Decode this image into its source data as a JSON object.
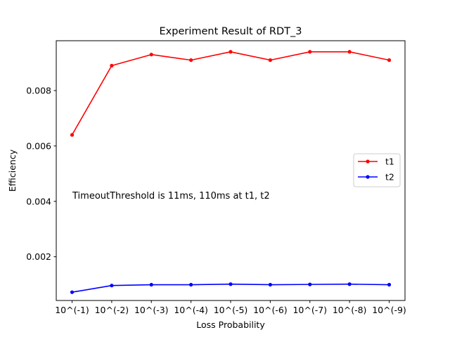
{
  "chart_data": {
    "type": "line",
    "title": "Experiment Result of RDT_3",
    "xlabel": "Loss Probability",
    "ylabel": "Efficiency",
    "categories": [
      "10^(-1)",
      "10^(-2)",
      "10^(-3)",
      "10^(-4)",
      "10^(-5)",
      "10^(-6)",
      "10^(-7)",
      "10^(-8)",
      "10^(-9)"
    ],
    "series": [
      {
        "name": "t1",
        "color": "#ff0000",
        "values": [
          0.0064,
          0.0089,
          0.0093,
          0.0091,
          0.0094,
          0.0091,
          0.0094,
          0.0094,
          0.0091
        ]
      },
      {
        "name": "t2",
        "color": "#0000ff",
        "values": [
          0.00072,
          0.00096,
          0.00099,
          0.00099,
          0.00101,
          0.00099,
          0.001,
          0.00101,
          0.00099
        ]
      }
    ],
    "yticks": [
      0.002,
      0.004,
      0.006,
      0.008
    ],
    "ytick_labels": [
      "0.002",
      "0.004",
      "0.006",
      "0.008"
    ],
    "ylim": [
      0.00042,
      0.0098
    ],
    "annotation": "TimeoutThreshold is 11ms, 110ms at t1, t2",
    "legend_position": "center-right",
    "grid": false
  }
}
